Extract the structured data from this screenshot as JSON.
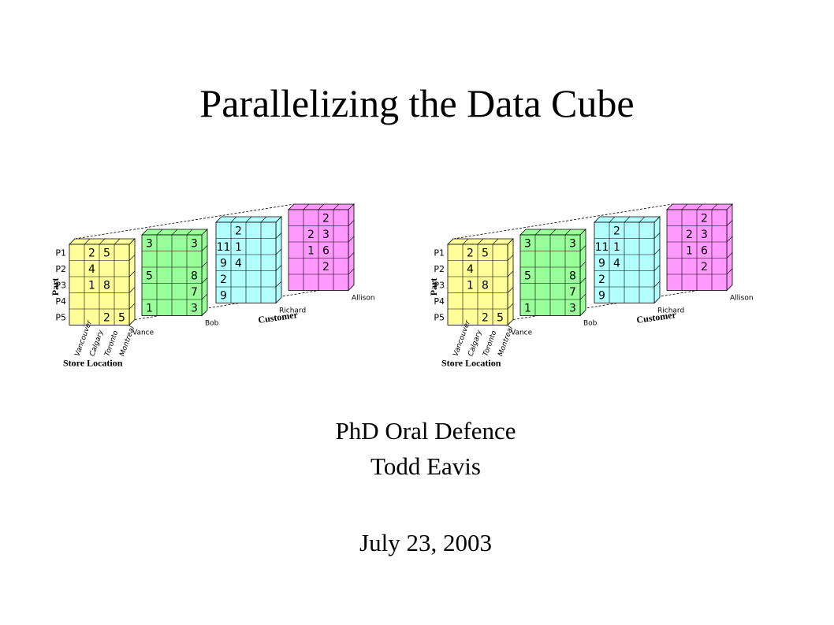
{
  "slide": {
    "title": "Parallelizing the Data Cube",
    "subtitle_line1": "PhD Oral Defence",
    "subtitle_line2": "Todd Eavis",
    "date": "July 23, 2003"
  },
  "cube": {
    "part_axis_label": "Part",
    "store_axis_label": "Store Location",
    "customer_axis_label": "Customer",
    "parts": [
      "P1",
      "P2",
      "P3",
      "P4",
      "P5"
    ],
    "stores": [
      "Vancouver",
      "Calgary",
      "Toronto",
      "Montreal"
    ],
    "customers": [
      "Vance",
      "Bob",
      "Richard",
      "Allison"
    ],
    "layer_colors": [
      "#ffff99",
      "#99ff99",
      "#b3ffff",
      "#ff99ff"
    ],
    "layers": [
      {
        "customer": "Vance",
        "grid": [
          [
            "",
            "2",
            "5",
            ""
          ],
          [
            "",
            "4",
            "",
            ""
          ],
          [
            "",
            "1",
            "8",
            ""
          ],
          [
            "",
            "",
            "",
            ""
          ],
          [
            "",
            "",
            "2",
            "5"
          ]
        ]
      },
      {
        "customer": "Bob",
        "grid": [
          [
            "3",
            "",
            "",
            "3"
          ],
          [
            "",
            "",
            "",
            ""
          ],
          [
            "5",
            "",
            "",
            "8"
          ],
          [
            "",
            "",
            "",
            "7"
          ],
          [
            "1",
            "",
            "",
            "3"
          ]
        ]
      },
      {
        "customer": "Richard",
        "grid": [
          [
            "",
            "2",
            "",
            ""
          ],
          [
            "11",
            "1",
            "",
            ""
          ],
          [
            "9",
            "4",
            "",
            ""
          ],
          [
            "2",
            "",
            "",
            ""
          ],
          [
            "9",
            "",
            "",
            ""
          ]
        ]
      },
      {
        "customer": "Allison",
        "grid": [
          [
            "",
            "",
            "2",
            ""
          ],
          [
            "",
            "2",
            "3",
            ""
          ],
          [
            "",
            "1",
            "6",
            ""
          ],
          [
            "",
            "",
            "2",
            ""
          ],
          [
            "",
            "",
            "",
            ""
          ]
        ]
      }
    ]
  }
}
